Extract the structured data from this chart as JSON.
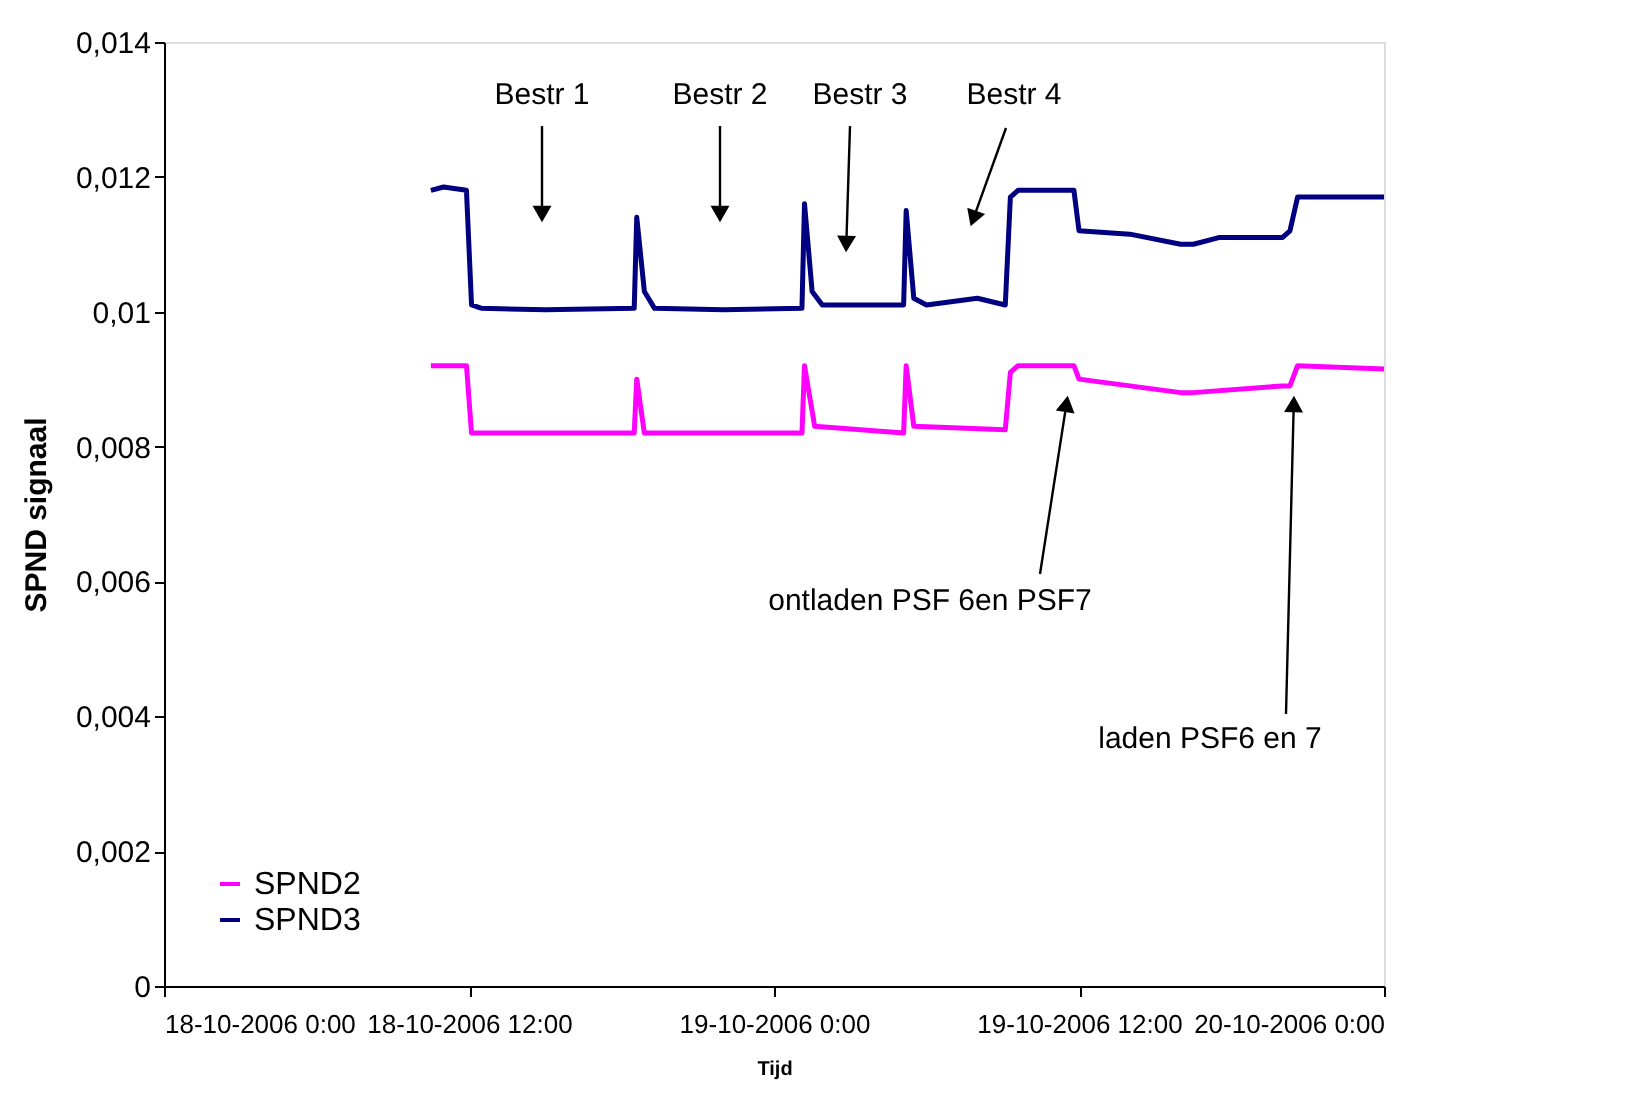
{
  "chart_data": {
    "type": "line",
    "xlabel": "Tijd",
    "ylabel": "SPND signaal",
    "xlim": [
      "2006-10-18T00:00",
      "2006-10-20T00:00"
    ],
    "xticks": [
      {
        "value": "2006-10-18T00:00",
        "label": "18-10-2006 0:00"
      },
      {
        "value": "2006-10-18T12:00",
        "label": "18-10-2006 12:00"
      },
      {
        "value": "2006-10-19T00:00",
        "label": "19-10-2006 0:00"
      },
      {
        "value": "2006-10-19T12:00",
        "label": "19-10-2006 12:00"
      },
      {
        "value": "2006-10-20T00:00",
        "label": "20-10-2006 0:00"
      }
    ],
    "ylim": [
      0,
      0.014
    ],
    "yticks": [
      0,
      {
        "value": 0.002,
        "label": "0,002"
      },
      {
        "value": 0.004,
        "label": "0,004"
      },
      {
        "value": 0.006,
        "label": "0,006"
      },
      {
        "value": 0.008,
        "label": "0,008"
      },
      {
        "value": 0.01,
        "label": "0,01"
      },
      {
        "value": 0.012,
        "label": "0,012"
      },
      {
        "value": 0.014,
        "label": "0,014"
      }
    ],
    "grid": false,
    "legend": "bottom left",
    "line_style": "solid",
    "series": [
      {
        "name": "SPND2",
        "color": "#ff00ff",
        "x": [
          "2006-10-18T10:30",
          "2006-10-18T11:54",
          "2006-10-18T12:06",
          "2006-10-18T18:30",
          "2006-10-18T18:36",
          "2006-10-18T18:54",
          "2006-10-19T01:06",
          "2006-10-19T01:12",
          "2006-10-19T01:36",
          "2006-10-19T05:06",
          "2006-10-19T05:12",
          "2006-10-19T05:30",
          "2006-10-19T09:06",
          "2006-10-19T09:18",
          "2006-10-19T09:36",
          "2006-10-19T11:48",
          "2006-10-19T12:00",
          "2006-10-19T14:00",
          "2006-10-19T16:00",
          "2006-10-19T16:30",
          "2006-10-19T20:00",
          "2006-10-19T20:18",
          "2006-10-19T20:36",
          "2006-10-20T00:00"
        ],
        "values": [
          0.0092,
          0.0092,
          0.0082,
          0.0082,
          0.009,
          0.0082,
          0.0082,
          0.0092,
          0.0083,
          0.0082,
          0.0092,
          0.0083,
          0.00825,
          0.0091,
          0.0092,
          0.0092,
          0.009,
          0.0089,
          0.0088,
          0.0088,
          0.0089,
          0.0089,
          0.0092,
          0.00915
        ]
      },
      {
        "name": "SPND3",
        "color": "#000080",
        "x": [
          "2006-10-18T10:30",
          "2006-10-18T11:00",
          "2006-10-18T11:54",
          "2006-10-18T12:06",
          "2006-10-18T12:30",
          "2006-10-18T15:00",
          "2006-10-18T18:30",
          "2006-10-18T18:36",
          "2006-10-18T18:54",
          "2006-10-18T19:18",
          "2006-10-18T22:00",
          "2006-10-19T01:06",
          "2006-10-19T01:12",
          "2006-10-19T01:30",
          "2006-10-19T01:54",
          "2006-10-19T05:06",
          "2006-10-19T05:12",
          "2006-10-19T05:30",
          "2006-10-19T06:00",
          "2006-10-19T08:00",
          "2006-10-19T09:06",
          "2006-10-19T09:18",
          "2006-10-19T09:36",
          "2006-10-19T11:48",
          "2006-10-19T12:00",
          "2006-10-19T14:00",
          "2006-10-19T16:00",
          "2006-10-19T16:30",
          "2006-10-19T17:30",
          "2006-10-19T20:00",
          "2006-10-19T20:18",
          "2006-10-19T20:36",
          "2006-10-19T22:00",
          "2006-10-20T00:00"
        ],
        "values": [
          0.0118,
          0.01185,
          0.0118,
          0.0101,
          0.01005,
          0.01003,
          0.01005,
          0.0114,
          0.0103,
          0.01005,
          0.01003,
          0.01005,
          0.0116,
          0.0103,
          0.0101,
          0.0101,
          0.0115,
          0.0102,
          0.0101,
          0.0102,
          0.0101,
          0.0117,
          0.0118,
          0.0118,
          0.0112,
          0.01115,
          0.011,
          0.011,
          0.0111,
          0.0111,
          0.0112,
          0.0117,
          0.0117,
          0.0117
        ]
      }
    ],
    "annotations": [
      "Bestr 1",
      "Bestr 2",
      "Bestr 3",
      "Bestr 4",
      "ontladen PSF 6en PSF7",
      "laden PSF6 en 7"
    ]
  }
}
